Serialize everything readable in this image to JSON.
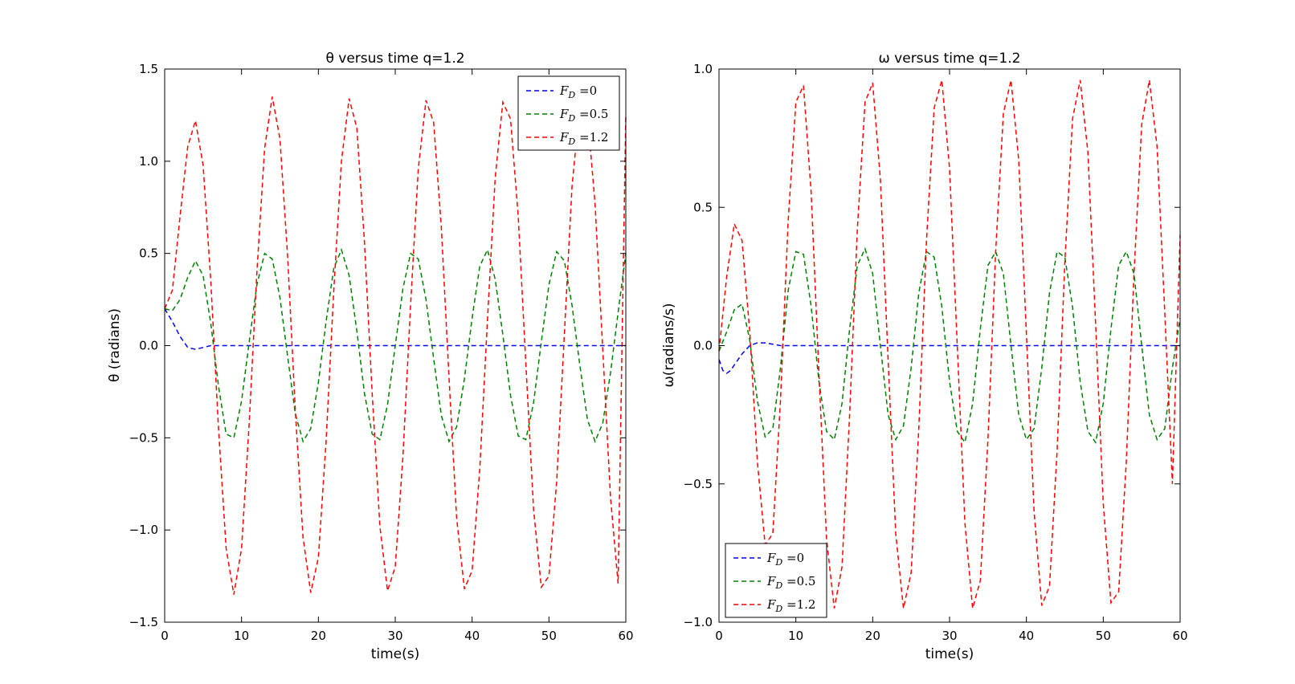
{
  "chart_data": [
    {
      "type": "line",
      "title": "θ versus time q=1.2",
      "xlabel": "time(s)",
      "ylabel": "θ (radians)",
      "xlim": [
        0,
        60
      ],
      "ylim": [
        -1.5,
        1.5
      ],
      "xticks": [
        "0",
        "10",
        "20",
        "30",
        "40",
        "50",
        "60"
      ],
      "yticks": [
        "−1.5",
        "−1.0",
        "−0.5",
        "0.0",
        "0.5",
        "1.0",
        "1.5"
      ],
      "grid": false,
      "legend_position": "top-right",
      "series": [
        {
          "name": "F_D =0",
          "color": "#0000ff",
          "linestyle": "dashed",
          "x": [
            0,
            1,
            2,
            3,
            4,
            5,
            6,
            8,
            10,
            20,
            30,
            40,
            50,
            60
          ],
          "y": [
            0.2,
            0.13,
            0.05,
            -0.01,
            -0.02,
            -0.01,
            0.0,
            0.0,
            0.0,
            0.0,
            0.0,
            0.0,
            0.0,
            0.0
          ]
        },
        {
          "name": "F_D =0.5",
          "color": "#008000",
          "linestyle": "dashed",
          "x": [
            0,
            1,
            2,
            3,
            4,
            5,
            6,
            7,
            8,
            9,
            10,
            11,
            12,
            13,
            14,
            15,
            16,
            17,
            18,
            19,
            20,
            21,
            22,
            23,
            24,
            25,
            26,
            27,
            28,
            29,
            30,
            31,
            32,
            33,
            34,
            35,
            36,
            37,
            38,
            39,
            40,
            41,
            42,
            43,
            44,
            45,
            46,
            47,
            48,
            49,
            50,
            51,
            52,
            53,
            54,
            55,
            56,
            57,
            58,
            59,
            60
          ],
          "y": [
            0.2,
            0.19,
            0.25,
            0.37,
            0.46,
            0.38,
            0.12,
            -0.22,
            -0.48,
            -0.5,
            -0.3,
            0.02,
            0.33,
            0.5,
            0.47,
            0.26,
            -0.06,
            -0.37,
            -0.52,
            -0.45,
            -0.2,
            0.13,
            0.42,
            0.52,
            0.38,
            0.08,
            -0.26,
            -0.48,
            -0.51,
            -0.32,
            0.0,
            0.31,
            0.5,
            0.47,
            0.25,
            -0.07,
            -0.38,
            -0.52,
            -0.44,
            -0.18,
            0.15,
            0.43,
            0.52,
            0.36,
            0.06,
            -0.27,
            -0.49,
            -0.51,
            -0.31,
            0.02,
            0.33,
            0.51,
            0.46,
            0.22,
            -0.1,
            -0.4,
            -0.52,
            -0.42,
            -0.15,
            0.18,
            0.5
          ]
        },
        {
          "name": "F_D =1.2",
          "color": "#ff0000",
          "linestyle": "dashed",
          "x": [
            0,
            1,
            2,
            3,
            4,
            5,
            6,
            7,
            8,
            9,
            10,
            11,
            12,
            13,
            14,
            15,
            16,
            17,
            18,
            19,
            20,
            21,
            22,
            23,
            24,
            25,
            26,
            27,
            28,
            29,
            30,
            31,
            32,
            33,
            34,
            35,
            36,
            37,
            38,
            39,
            40,
            41,
            42,
            43,
            44,
            45,
            46,
            47,
            48,
            49,
            50,
            51,
            52,
            53,
            54,
            55,
            56,
            57,
            58,
            59,
            60
          ],
          "y": [
            0.2,
            0.3,
            0.7,
            1.08,
            1.22,
            0.98,
            0.35,
            -0.45,
            -1.1,
            -1.35,
            -1.1,
            -0.42,
            0.4,
            1.07,
            1.35,
            1.12,
            0.48,
            -0.35,
            -1.04,
            -1.34,
            -1.15,
            -0.52,
            0.3,
            1.0,
            1.34,
            1.18,
            0.56,
            -0.26,
            -0.98,
            -1.33,
            -1.2,
            -0.6,
            0.22,
            0.96,
            1.33,
            1.21,
            0.64,
            -0.18,
            -0.94,
            -1.32,
            -1.22,
            -0.67,
            0.14,
            0.91,
            1.32,
            1.23,
            0.7,
            -0.1,
            -0.89,
            -1.31,
            -1.25,
            -0.74,
            0.06,
            0.86,
            1.3,
            1.26,
            0.77,
            -0.02,
            -0.82,
            -1.29,
            1.25
          ]
        }
      ]
    },
    {
      "type": "line",
      "title": "ω versus time q=1.2",
      "xlabel": "time(s)",
      "ylabel": "ω(radians/s)",
      "xlim": [
        0,
        60
      ],
      "ylim": [
        -1.0,
        1.0
      ],
      "xticks": [
        "0",
        "10",
        "20",
        "30",
        "40",
        "50",
        "60"
      ],
      "yticks": [
        "−1.0",
        "−0.5",
        "0.0",
        "0.5",
        "1.0"
      ],
      "grid": false,
      "legend_position": "bottom-left",
      "series": [
        {
          "name": "F_D =0",
          "color": "#0000ff",
          "linestyle": "dashed",
          "x": [
            0,
            0.5,
            1,
            1.5,
            2,
            3,
            4,
            5,
            6,
            7,
            8,
            10,
            20,
            30,
            40,
            50,
            60
          ],
          "y": [
            -0.05,
            -0.09,
            -0.1,
            -0.09,
            -0.07,
            -0.03,
            0.0,
            0.01,
            0.01,
            0.005,
            0.0,
            0.0,
            0.0,
            0.0,
            0.0,
            0.0,
            0.0
          ]
        },
        {
          "name": "F_D =0.5",
          "color": "#008000",
          "linestyle": "dashed",
          "x": [
            0,
            1,
            2,
            3,
            4,
            5,
            6,
            7,
            8,
            9,
            10,
            11,
            12,
            13,
            14,
            15,
            16,
            17,
            18,
            19,
            20,
            21,
            22,
            23,
            24,
            25,
            26,
            27,
            28,
            29,
            30,
            31,
            32,
            33,
            34,
            35,
            36,
            37,
            38,
            39,
            40,
            41,
            42,
            43,
            44,
            45,
            46,
            47,
            48,
            49,
            50,
            51,
            52,
            53,
            54,
            55,
            56,
            57,
            58,
            59,
            60
          ],
          "y": [
            -0.02,
            0.05,
            0.13,
            0.15,
            0.02,
            -0.2,
            -0.33,
            -0.3,
            -0.08,
            0.2,
            0.34,
            0.33,
            0.14,
            -0.13,
            -0.31,
            -0.34,
            -0.21,
            0.06,
            0.29,
            0.35,
            0.26,
            0.0,
            -0.25,
            -0.34,
            -0.29,
            -0.08,
            0.19,
            0.34,
            0.32,
            0.14,
            -0.13,
            -0.31,
            -0.35,
            -0.21,
            0.06,
            0.29,
            0.34,
            0.26,
            0.0,
            -0.25,
            -0.34,
            -0.3,
            -0.08,
            0.19,
            0.34,
            0.32,
            0.14,
            -0.13,
            -0.31,
            -0.35,
            -0.21,
            0.06,
            0.29,
            0.34,
            0.26,
            0.0,
            -0.25,
            -0.34,
            -0.3,
            -0.08,
            0.1
          ]
        },
        {
          "name": "F_D =1.2",
          "color": "#ff0000",
          "linestyle": "dashed",
          "x": [
            0,
            1,
            2,
            3,
            4,
            5,
            6,
            7,
            8,
            9,
            10,
            11,
            12,
            13,
            14,
            15,
            16,
            17,
            18,
            19,
            20,
            21,
            22,
            23,
            24,
            25,
            26,
            27,
            28,
            29,
            30,
            31,
            32,
            33,
            34,
            35,
            36,
            37,
            38,
            39,
            40,
            41,
            42,
            43,
            44,
            45,
            46,
            47,
            48,
            49,
            50,
            51,
            52,
            53,
            54,
            55,
            56,
            57,
            58,
            59,
            60
          ],
          "y": [
            -0.02,
            0.25,
            0.44,
            0.38,
            0.05,
            -0.42,
            -0.72,
            -0.68,
            -0.2,
            0.45,
            0.88,
            0.94,
            0.55,
            -0.1,
            -0.7,
            -0.95,
            -0.8,
            -0.25,
            0.42,
            0.88,
            0.95,
            0.6,
            -0.05,
            -0.68,
            -0.95,
            -0.82,
            -0.3,
            0.38,
            0.86,
            0.96,
            0.64,
            0.0,
            -0.64,
            -0.95,
            -0.85,
            -0.34,
            0.34,
            0.84,
            0.96,
            0.67,
            0.04,
            -0.6,
            -0.94,
            -0.87,
            -0.38,
            0.3,
            0.82,
            0.96,
            0.7,
            0.08,
            -0.57,
            -0.93,
            -0.89,
            -0.42,
            0.26,
            0.8,
            0.96,
            0.72,
            0.12,
            -0.5,
            0.4
          ]
        }
      ]
    }
  ]
}
